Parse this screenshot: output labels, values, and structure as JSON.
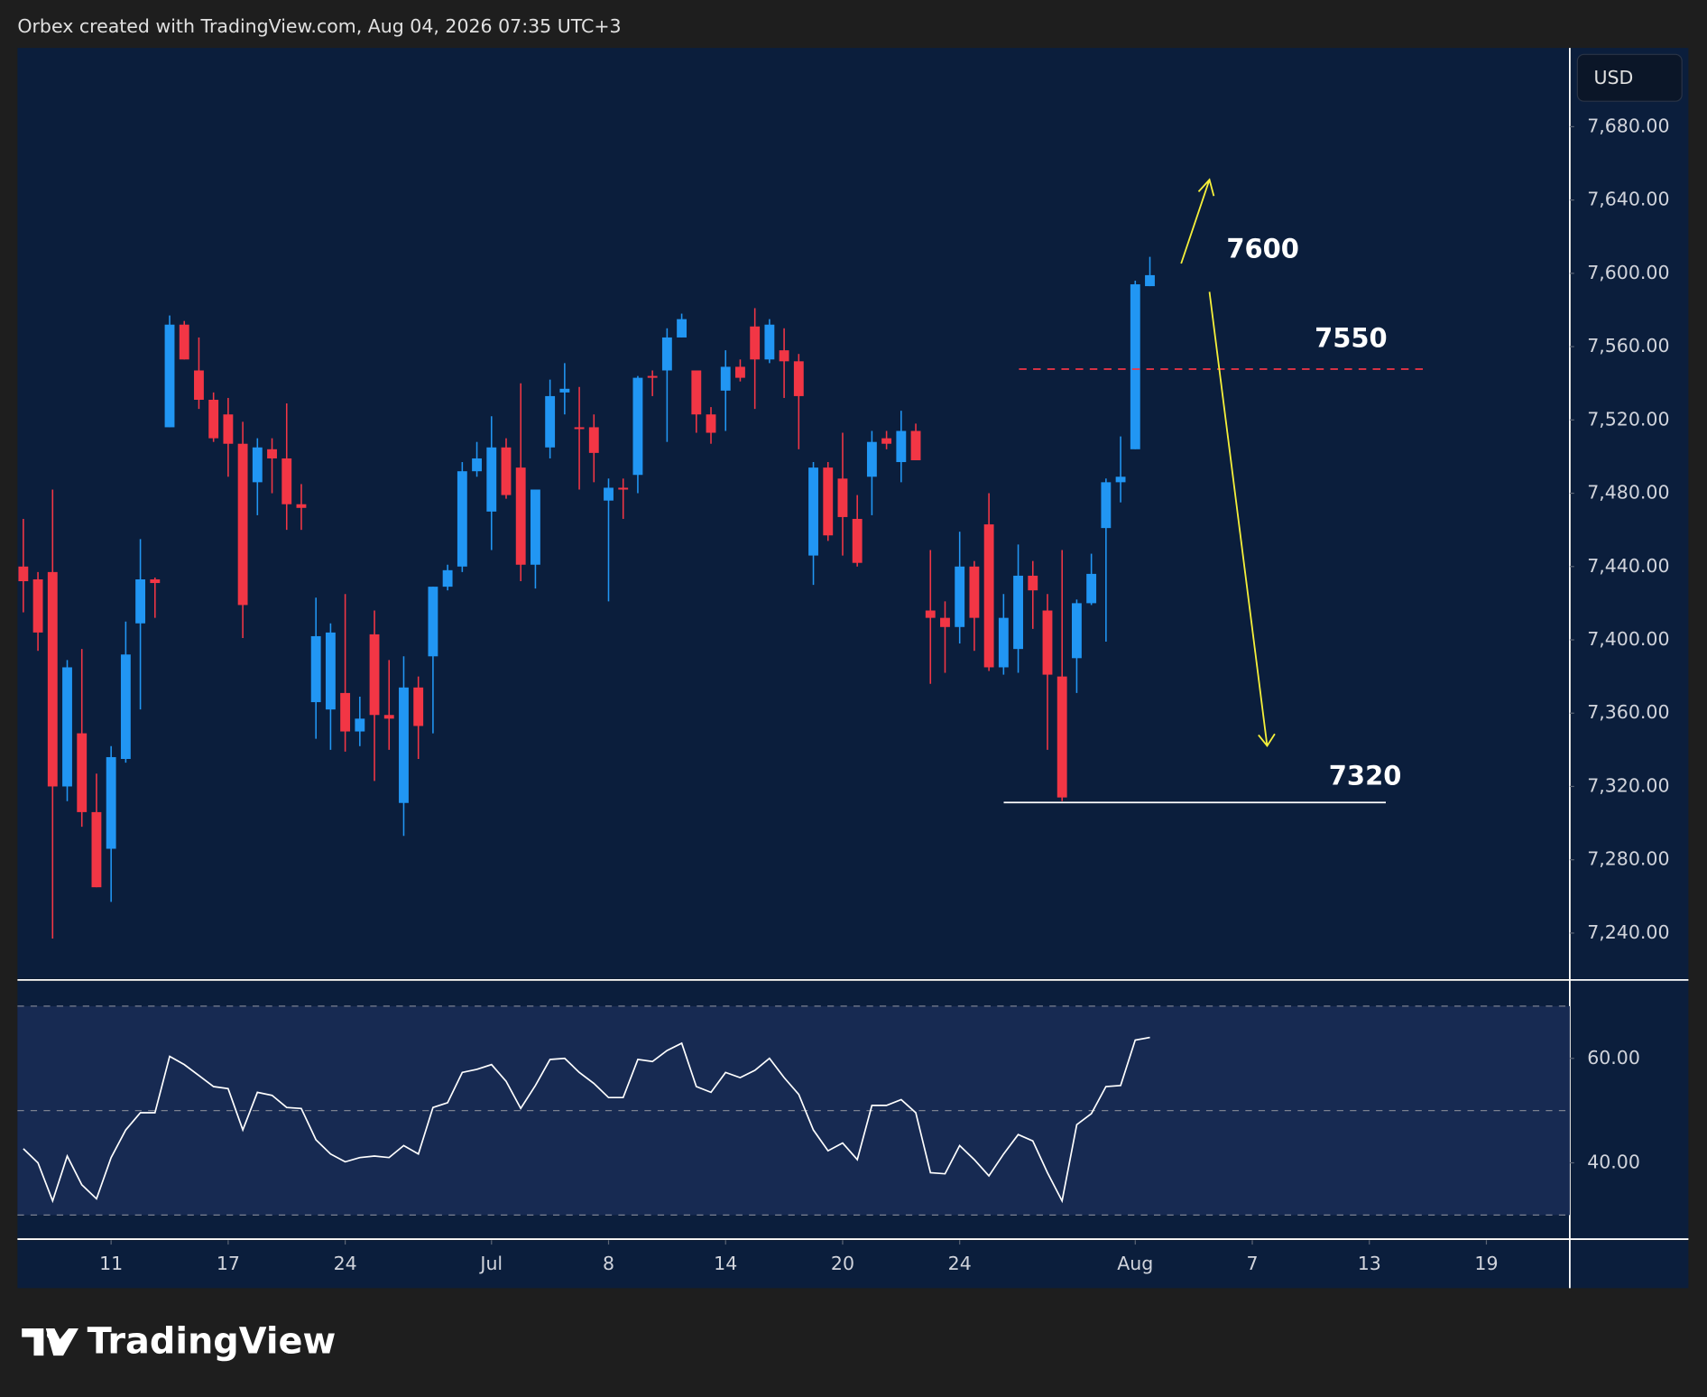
{
  "header": "Orbex created with TradingView.com, Aug 04, 2026 07:35 UTC+3",
  "currency_button": "USD",
  "logo": "TradingView",
  "chart_data": [
    {
      "type": "candlestick",
      "x": [
        0,
        1,
        2,
        3,
        4,
        5,
        6,
        7,
        8,
        9,
        10,
        11,
        12,
        13,
        14,
        15,
        16,
        17,
        18,
        19,
        20,
        21,
        22,
        23,
        24,
        25,
        26,
        27,
        28,
        29,
        30,
        31,
        32,
        33,
        34,
        35,
        36,
        37,
        38,
        39,
        40,
        41,
        42,
        43,
        44,
        45,
        46,
        47,
        48,
        49,
        50,
        51,
        52,
        53,
        54,
        55,
        56,
        57,
        58,
        59,
        60,
        61,
        62,
        63,
        64,
        65,
        66,
        67,
        68,
        69,
        70,
        71,
        72,
        73,
        74,
        75,
        76,
        77
      ],
      "open": [
        7440,
        7433,
        7437,
        7320,
        7349,
        7306,
        7286,
        7335,
        7409,
        7433,
        7516,
        7572,
        7547,
        7531,
        7523,
        7507,
        7486,
        7504,
        7499,
        7474,
        7366,
        7362,
        7371,
        7350,
        7403,
        7359,
        7311,
        7374,
        7391,
        7429,
        7440,
        7492,
        7470,
        7505,
        7494,
        7441,
        7505,
        7535,
        7516,
        7516,
        7476,
        7483,
        7490,
        7544,
        7547,
        7565,
        7547,
        7523,
        7536,
        7549,
        7571,
        7553,
        7558,
        7552,
        7446,
        7494,
        7488,
        7466,
        7489,
        7510,
        7497,
        7514,
        7416,
        7412,
        7407,
        7440,
        7463,
        7385,
        7395,
        7435,
        7416,
        7380,
        7390,
        7420,
        7461,
        7486,
        7504,
        7593
      ],
      "high": [
        7466,
        7437,
        7482,
        7389,
        7395,
        7327,
        7342,
        7410,
        7455,
        7434,
        7577,
        7574,
        7565,
        7535,
        7532,
        7519,
        7510,
        7510,
        7529,
        7485,
        7423,
        7409,
        7425,
        7369,
        7416,
        7389,
        7391,
        7380,
        7429,
        7441,
        7497,
        7508,
        7522,
        7510,
        7540,
        7482,
        7542,
        7551,
        7538,
        7523,
        7488,
        7488,
        7544,
        7547,
        7570,
        7578,
        7547,
        7527,
        7558,
        7553,
        7581,
        7575,
        7570,
        7556,
        7497,
        7497,
        7513,
        7479,
        7514,
        7514,
        7525,
        7518,
        7449,
        7421,
        7459,
        7443,
        7480,
        7425,
        7452,
        7443,
        7425,
        7449,
        7422,
        7447,
        7488,
        7511,
        7596,
        7609
      ],
      "low": [
        7415,
        7394,
        7237,
        7312,
        7298,
        7265,
        7257,
        7333,
        7362,
        7412,
        7516,
        7553,
        7526,
        7508,
        7489,
        7401,
        7468,
        7480,
        7460,
        7460,
        7346,
        7340,
        7339,
        7342,
        7323,
        7340,
        7293,
        7335,
        7349,
        7427,
        7437,
        7489,
        7449,
        7477,
        7432,
        7428,
        7499,
        7523,
        7482,
        7486,
        7421,
        7466,
        7480,
        7533,
        7508,
        7565,
        7513,
        7507,
        7514,
        7541,
        7526,
        7551,
        7532,
        7504,
        7430,
        7454,
        7446,
        7440,
        7468,
        7504,
        7486,
        7498,
        7376,
        7382,
        7398,
        7394,
        7383,
        7381,
        7382,
        7406,
        7340,
        7312,
        7371,
        7419,
        7399,
        7475,
        7504,
        7593
      ],
      "close": [
        7432,
        7404,
        7320,
        7385,
        7306,
        7265,
        7336,
        7392,
        7433,
        7431,
        7572,
        7553,
        7531,
        7510,
        7507,
        7419,
        7505,
        7499,
        7474,
        7472,
        7402,
        7404,
        7350,
        7357,
        7359,
        7357,
        7374,
        7353,
        7429,
        7438,
        7492,
        7499,
        7505,
        7479,
        7441,
        7482,
        7533,
        7537,
        7515,
        7502,
        7483,
        7482,
        7543,
        7543,
        7565,
        7575,
        7523,
        7513,
        7549,
        7543,
        7553,
        7572,
        7552,
        7533,
        7494,
        7457,
        7467,
        7442,
        7508,
        7507,
        7514,
        7498,
        7412,
        7407,
        7440,
        7412,
        7385,
        7412,
        7435,
        7427,
        7381,
        7314,
        7420,
        7436,
        7486,
        7489,
        7594,
        7599
      ],
      "up_color": "#2196f3",
      "down_color": "#f23645",
      "xlim": [
        -0.4,
        105.7
      ],
      "xticks": [
        {
          "value": 6,
          "label": "11"
        },
        {
          "value": 14,
          "label": "17"
        },
        {
          "value": 22,
          "label": "24"
        },
        {
          "value": 32,
          "label": "Jul"
        },
        {
          "value": 40,
          "label": "8"
        },
        {
          "value": 48,
          "label": "14"
        },
        {
          "value": 56,
          "label": "20"
        },
        {
          "value": 64,
          "label": "24"
        },
        {
          "value": 76,
          "label": "Aug"
        },
        {
          "value": 84,
          "label": "7"
        },
        {
          "value": 92,
          "label": "13"
        },
        {
          "value": 100,
          "label": "19"
        }
      ],
      "ylim": [
        7215,
        7723
      ],
      "yticks": [
        {
          "value": 7680,
          "label": "7,680.00"
        },
        {
          "value": 7640,
          "label": "7,640.00"
        },
        {
          "value": 7600,
          "label": "7,600.00"
        },
        {
          "value": 7560,
          "label": "7,560.00"
        },
        {
          "value": 7520,
          "label": "7,520.00"
        },
        {
          "value": 7480,
          "label": "7,480.00"
        },
        {
          "value": 7440,
          "label": "7,440.00"
        },
        {
          "value": 7400,
          "label": "7,400.00"
        },
        {
          "value": 7360,
          "label": "7,360.00"
        },
        {
          "value": 7320,
          "label": "7,320.00"
        },
        {
          "value": 7280,
          "label": "7,280.00"
        },
        {
          "value": 7240,
          "label": "7,240.00"
        }
      ],
      "annotations": [
        "7600",
        "7550",
        "7320"
      ]
    },
    {
      "type": "line",
      "x": [
        0,
        1,
        2,
        3,
        4,
        5,
        6,
        7,
        8,
        9,
        10,
        11,
        12,
        13,
        14,
        15,
        16,
        17,
        18,
        19,
        20,
        21,
        22,
        23,
        24,
        25,
        26,
        27,
        28,
        29,
        30,
        31,
        32,
        33,
        34,
        35,
        36,
        37,
        38,
        39,
        40,
        41,
        42,
        43,
        44,
        45,
        46,
        47,
        48,
        49,
        50,
        51,
        52,
        53,
        54,
        55,
        56,
        57,
        58,
        59,
        60,
        61,
        62,
        63,
        64,
        65,
        66,
        67,
        68,
        69,
        70,
        71,
        72,
        73,
        74,
        75,
        76,
        77
      ],
      "values": [
        42.7,
        40,
        32.7,
        41.3,
        35.8,
        33.1,
        41,
        46.3,
        49.6,
        49.6,
        60.4,
        58.8,
        56.7,
        54.6,
        54.2,
        46.3,
        53.5,
        52.9,
        50.6,
        50.4,
        44.4,
        41.7,
        40.2,
        41,
        41.3,
        41,
        43.3,
        41.7,
        50.6,
        51.5,
        57.3,
        57.9,
        58.8,
        55.6,
        50.4,
        54.8,
        59.8,
        60,
        57.3,
        55.2,
        52.5,
        52.5,
        59.8,
        59.4,
        61.5,
        62.9,
        54.6,
        53.5,
        57.3,
        56.3,
        57.7,
        60,
        56.3,
        53.1,
        46.3,
        42.3,
        43.8,
        40.6,
        51,
        51,
        52.1,
        49.6,
        38.1,
        37.9,
        43.3,
        40.6,
        37.5,
        41.7,
        45.4,
        44.2,
        38.1,
        32.7,
        47.3,
        49.4,
        54.6,
        54.8,
        63.5,
        64
      ],
      "color": "#ffffff",
      "xlim": [
        -0.4,
        105.7
      ],
      "ylim": [
        25.6,
        74.8
      ],
      "yticks": [
        {
          "value": 60,
          "label": "60.00"
        },
        {
          "value": 40,
          "label": "40.00"
        }
      ],
      "levels": [
        70,
        50,
        30
      ]
    }
  ]
}
